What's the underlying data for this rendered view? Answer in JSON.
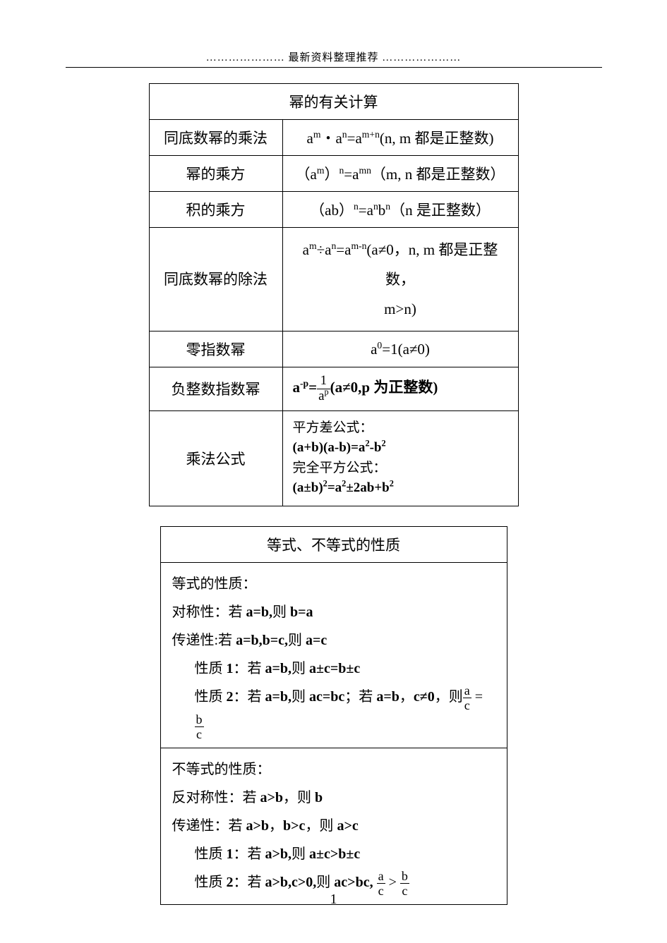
{
  "header": {
    "text": "………………… 最新资料整理推荐 …………………"
  },
  "table1": {
    "title": "幂的有关计算",
    "rows": [
      {
        "label": "同底数幂的乘法",
        "formula_html": "a<sup>m</sup>・a<sup>n</sup>=a<sup>m+n</sup>(n, m 都是正整数)",
        "align": "center"
      },
      {
        "label": "幂的乘方",
        "formula_html": "（a<sup>m</sup>）<sup>n</sup>=a<sup>mn</sup>（m, n 都是正整数）",
        "align": "center"
      },
      {
        "label": "积的乘方",
        "formula_html": "（ab）<sup>n</sup>=a<sup>n</sup>b<sup>n</sup>（n 是正整数）",
        "align": "center"
      },
      {
        "label": "同底数幂的除法",
        "formula_html": "a<sup>m</sup>÷a<sup>n</sup>=a<sup>m-n</sup>(a≠0，n, m 都是正整数，<br>m>n)",
        "align": "center",
        "tall": true
      },
      {
        "label": "零指数幂",
        "formula_html": "a<sup>0</sup>=1(a≠0)",
        "align": "center"
      },
      {
        "label": "负整数指数幂",
        "formula_html": "<b>a<sup>-p</sup>=</b><span class=\"frac\"><span class=\"num\">1</span><span class=\"den\">a<sup>p</sup></span></span><b>(a≠0,p 为正整数)</b>",
        "align": "left"
      },
      {
        "label": "乘法公式",
        "formula_html": "<div class=\"formula-block\">平方差公式：<br><b>(a+b)(a-b)=a<sup>2</sup>-b<sup>2</sup></b><br>完全平方公式：<br><b>(a±b)<sup>2</sup>=a<sup>2</sup>±2ab+b<sup>2</sup></b></div>",
        "align": "left"
      }
    ]
  },
  "table2": {
    "title": "等式、不等式的性质",
    "group1": {
      "header": "等式的性质：",
      "lines": [
        {
          "html": "对称性：若 <b>a=b,</b>则 <b>b=a</b>",
          "indent": false
        },
        {
          "html": "传递性:若 <b>a=b,b=c,</b>则 <b>a=c</b>",
          "indent": false
        },
        {
          "html": "性质 <b>1</b>：若 <b>a=b,</b>则 <b>a±c=b±c</b>",
          "indent": true
        },
        {
          "html": "性质 <b>2</b>：若 <b>a=b,</b>则 <b>ac=bc</b>；若 <b>a=b</b>，<b>c≠0</b>，则<span class=\"frac\"><span class=\"num\">a</span><span class=\"den\">c</span></span> = <span class=\"frac\"><span class=\"num\">b</span><span class=\"den\">c</span></span>",
          "indent": true
        }
      ]
    },
    "group2": {
      "header": "不等式的性质：",
      "lines": [
        {
          "html": "反对称性：若 <b>a>b</b>，则 <b>b</b>",
          "indent": false
        },
        {
          "html": "传递性：若 <b>a>b</b>，<b>b>c</b>，则 <b>a>c</b>",
          "indent": false
        },
        {
          "html": "性质 <b>1</b>：若 <b>a>b,</b>则 <b>a±c>b±c</b>",
          "indent": true
        },
        {
          "html": "性质 <b>2</b>：若 <b>a>b,c>0,</b>则 <b>ac>bc,</b> <span class=\"frac\"><span class=\"num\">a</span><span class=\"den\">c</span></span> &gt; <span class=\"frac\"><span class=\"num\">b</span><span class=\"den\">c</span></span>",
          "indent": true
        }
      ]
    }
  },
  "page_number": "1",
  "colors": {
    "text": "#000000",
    "background": "#ffffff",
    "border": "#000000"
  }
}
